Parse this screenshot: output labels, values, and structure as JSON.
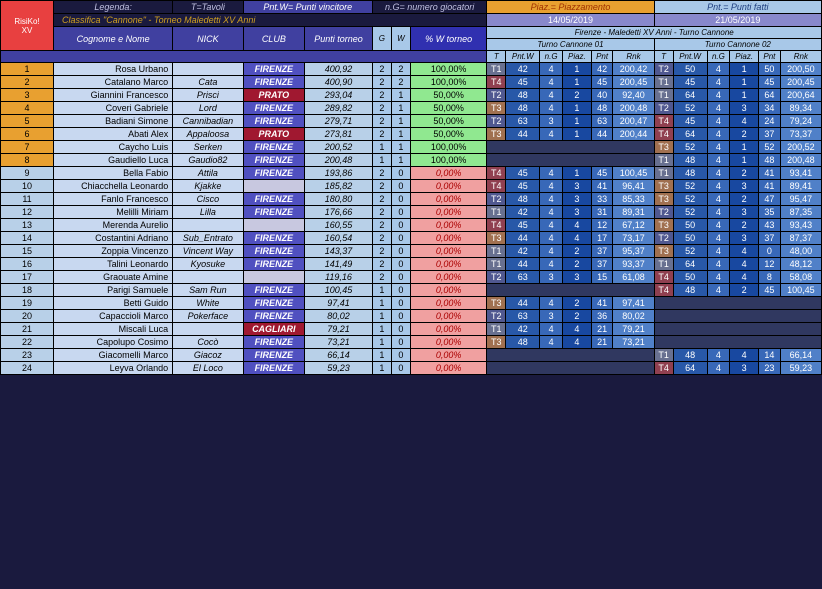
{
  "legend": {
    "l": "Legenda:",
    "t": "T=Tavoli",
    "pw": "Pnt.W= Punti vincitore",
    "ng": "n.G= numero giocatori",
    "pz": "Piaz.= Piazzamento",
    "pf": "Pnt.= Punti fatti"
  },
  "title": "Classifica \"Cannone\" - Torneo Maledetti XV Anni",
  "dates": [
    "14/05/2019",
    "21/05/2019"
  ],
  "event": "Firenze - Maledetti XV Anni - Turno Cannone",
  "turni": [
    "Turno Cannone 01",
    "Turno Cannone 02"
  ],
  "cols": {
    "cn": "Cognome e Nome",
    "nk": "NICK",
    "cl": "CLUB",
    "pt": "Punti torneo",
    "g": "G",
    "w": "W",
    "pw": "% W torneo"
  },
  "tcols": [
    "T",
    "Pnt.W",
    "n.G",
    "Piaz.",
    "Pnt",
    "Rnk"
  ],
  "rows": [
    {
      "r": 1,
      "n": "Rosa Urbano",
      "nk": "",
      "cl": "FIRENZE",
      "pt": "400,92",
      "g": 2,
      "w": 2,
      "pw": "100,00%",
      "pc": "g",
      "t1": [
        "T1",
        "42",
        "4",
        "1",
        "42",
        "200,42"
      ],
      "t2": [
        "T2",
        "50",
        "4",
        "1",
        "50",
        "200,50"
      ]
    },
    {
      "r": 2,
      "n": "Catalano Marco",
      "nk": "Cata",
      "cl": "FIRENZE",
      "pt": "400,90",
      "g": 2,
      "w": 2,
      "pw": "100,00%",
      "pc": "g",
      "t1": [
        "T4",
        "45",
        "4",
        "1",
        "45",
        "200,45"
      ],
      "t2": [
        "T1",
        "45",
        "4",
        "1",
        "45",
        "200,45"
      ]
    },
    {
      "r": 3,
      "n": "Giannini Francesco",
      "nk": "Prisci",
      "cl": "PRATO",
      "clr": 1,
      "pt": "293,04",
      "g": 2,
      "w": 1,
      "pw": "50,00%",
      "pc": "g",
      "t1": [
        "T2",
        "48",
        "4",
        "2",
        "40",
        "92,40"
      ],
      "t2": [
        "T1",
        "64",
        "4",
        "1",
        "64",
        "200,64"
      ]
    },
    {
      "r": 4,
      "n": "Coveri Gabriele",
      "nk": "Lord",
      "cl": "FIRENZE",
      "pt": "289,82",
      "g": 2,
      "w": 1,
      "pw": "50,00%",
      "pc": "g",
      "t1": [
        "T3",
        "48",
        "4",
        "1",
        "48",
        "200,48"
      ],
      "t2": [
        "T2",
        "52",
        "4",
        "3",
        "34",
        "89,34"
      ]
    },
    {
      "r": 5,
      "n": "Badiani Simone",
      "nk": "Cannibadian",
      "cl": "FIRENZE",
      "pt": "279,71",
      "g": 2,
      "w": 1,
      "pw": "50,00%",
      "pc": "g",
      "t1": [
        "T2",
        "63",
        "3",
        "1",
        "63",
        "200,47"
      ],
      "t2": [
        "T4",
        "45",
        "4",
        "4",
        "24",
        "79,24"
      ]
    },
    {
      "r": 6,
      "n": "Abati Alex",
      "nk": "Appaloosa",
      "cl": "PRATO",
      "clr": 1,
      "pt": "273,81",
      "g": 2,
      "w": 1,
      "pw": "50,00%",
      "pc": "g",
      "t1": [
        "T3",
        "44",
        "4",
        "1",
        "44",
        "200,44"
      ],
      "t2": [
        "T4",
        "64",
        "4",
        "2",
        "37",
        "73,37"
      ]
    },
    {
      "r": 7,
      "n": "Caycho Luis",
      "nk": "Serken",
      "cl": "FIRENZE",
      "pt": "200,52",
      "g": 1,
      "w": 1,
      "pw": "100,00%",
      "pc": "g",
      "t1": null,
      "t2": [
        "T3",
        "52",
        "4",
        "1",
        "52",
        "200,52"
      ]
    },
    {
      "r": 8,
      "n": "Gaudiello Luca",
      "nk": "Gaudio82",
      "cl": "FIRENZE",
      "pt": "200,48",
      "g": 1,
      "w": 1,
      "pw": "100,00%",
      "pc": "g",
      "t1": null,
      "t2": [
        "T1",
        "48",
        "4",
        "1",
        "48",
        "200,48"
      ]
    },
    {
      "r": 9,
      "n": "Bella Fabio",
      "nk": "Attila",
      "cl": "FIRENZE",
      "pt": "193,86",
      "g": 2,
      "w": 0,
      "pw": "0,00%",
      "pc": "r",
      "t1": [
        "T4",
        "45",
        "4",
        "1",
        "45",
        "100,45"
      ],
      "t2": [
        "T1",
        "48",
        "4",
        "2",
        "41",
        "93,41"
      ]
    },
    {
      "r": 10,
      "n": "Chiacchella Leonardo",
      "nk": "Kjakke",
      "cl": "",
      "pt": "185,82",
      "g": 2,
      "w": 0,
      "pw": "0,00%",
      "pc": "r",
      "t1": [
        "T4",
        "45",
        "4",
        "3",
        "41",
        "96,41"
      ],
      "t2": [
        "T3",
        "52",
        "4",
        "3",
        "41",
        "89,41"
      ]
    },
    {
      "r": 11,
      "n": "Fanlo Francesco",
      "nk": "Cisco",
      "cl": "FIRENZE",
      "pt": "180,80",
      "g": 2,
      "w": 0,
      "pw": "0,00%",
      "pc": "r",
      "t1": [
        "T2",
        "48",
        "4",
        "3",
        "33",
        "85,33"
      ],
      "t2": [
        "T3",
        "52",
        "4",
        "2",
        "47",
        "95,47"
      ]
    },
    {
      "r": 12,
      "n": "Melilli Miriam",
      "nk": "Lilla",
      "cl": "FIRENZE",
      "pt": "176,66",
      "g": 2,
      "w": 0,
      "pw": "0,00%",
      "pc": "r",
      "t1": [
        "T1",
        "42",
        "4",
        "3",
        "31",
        "89,31"
      ],
      "t2": [
        "T2",
        "52",
        "4",
        "3",
        "35",
        "87,35"
      ]
    },
    {
      "r": 13,
      "n": "Merenda Aurelio",
      "nk": "",
      "cl": "",
      "pt": "160,55",
      "g": 2,
      "w": 0,
      "pw": "0,00%",
      "pc": "r",
      "t1": [
        "T4",
        "45",
        "4",
        "4",
        "12",
        "67,12"
      ],
      "t2": [
        "T3",
        "50",
        "4",
        "2",
        "43",
        "93,43"
      ]
    },
    {
      "r": 14,
      "n": "Costantini Adriano",
      "nk": "Sub_Entrato",
      "cl": "FIRENZE",
      "pt": "160,54",
      "g": 2,
      "w": 0,
      "pw": "0,00%",
      "pc": "r",
      "t1": [
        "T3",
        "44",
        "4",
        "4",
        "17",
        "73,17"
      ],
      "t2": [
        "T2",
        "50",
        "4",
        "3",
        "37",
        "87,37"
      ]
    },
    {
      "r": 15,
      "n": "Zoppia Vincenzo",
      "nk": "Vincent Way",
      "cl": "FIRENZE",
      "pt": "143,37",
      "g": 2,
      "w": 0,
      "pw": "0,00%",
      "pc": "r",
      "t1": [
        "T1",
        "42",
        "4",
        "2",
        "37",
        "95,37"
      ],
      "t2": [
        "T3",
        "52",
        "4",
        "4",
        "0",
        "48,00"
      ]
    },
    {
      "r": 16,
      "n": "Talini Leonardo",
      "nk": "Kyosuke",
      "cl": "FIRENZE",
      "pt": "141,49",
      "g": 2,
      "w": 0,
      "pw": "0,00%",
      "pc": "r",
      "t1": [
        "T1",
        "44",
        "4",
        "2",
        "37",
        "93,37"
      ],
      "t2": [
        "T1",
        "64",
        "4",
        "4",
        "12",
        "48,12"
      ]
    },
    {
      "r": 17,
      "n": "Graouate Amine",
      "nk": "",
      "cl": "",
      "pt": "119,16",
      "g": 2,
      "w": 0,
      "pw": "0,00%",
      "pc": "r",
      "t1": [
        "T2",
        "63",
        "3",
        "3",
        "15",
        "61,08"
      ],
      "t2": [
        "T4",
        "50",
        "4",
        "4",
        "8",
        "58,08"
      ]
    },
    {
      "r": 18,
      "n": "Parigi Samuele",
      "nk": "Sam Run",
      "cl": "FIRENZE",
      "pt": "100,45",
      "g": 1,
      "w": 0,
      "pw": "0,00%",
      "pc": "r",
      "t1": null,
      "t2": [
        "T4",
        "48",
        "4",
        "2",
        "45",
        "100,45"
      ]
    },
    {
      "r": 19,
      "n": "Betti Guido",
      "nk": "White",
      "cl": "FIRENZE",
      "pt": "97,41",
      "g": 1,
      "w": 0,
      "pw": "0,00%",
      "pc": "r",
      "t1": [
        "T3",
        "44",
        "4",
        "2",
        "41",
        "97,41"
      ],
      "t2": null
    },
    {
      "r": 20,
      "n": "Capaccioli Marco",
      "nk": "Pokerface",
      "cl": "FIRENZE",
      "pt": "80,02",
      "g": 1,
      "w": 0,
      "pw": "0,00%",
      "pc": "r",
      "t1": [
        "T2",
        "63",
        "3",
        "2",
        "36",
        "80,02"
      ],
      "t2": null
    },
    {
      "r": 21,
      "n": "Miscali Luca",
      "nk": "",
      "cl": "CAGLIARI",
      "clr": 1,
      "pt": "79,21",
      "g": 1,
      "w": 0,
      "pw": "0,00%",
      "pc": "r",
      "t1": [
        "T1",
        "42",
        "4",
        "4",
        "21",
        "79,21"
      ],
      "t2": null
    },
    {
      "r": 22,
      "n": "Capolupo Cosimo",
      "nk": "Cocò",
      "cl": "FIRENZE",
      "pt": "73,21",
      "g": 1,
      "w": 0,
      "pw": "0,00%",
      "pc": "r",
      "t1": [
        "T3",
        "48",
        "4",
        "4",
        "21",
        "73,21"
      ],
      "t2": null
    },
    {
      "r": 23,
      "n": "Giacomelli Marco",
      "nk": "Giacoz",
      "cl": "FIRENZE",
      "pt": "66,14",
      "g": 1,
      "w": 0,
      "pw": "0,00%",
      "pc": "r",
      "t1": null,
      "t2": [
        "T1",
        "48",
        "4",
        "4",
        "14",
        "66,14"
      ]
    },
    {
      "r": 24,
      "n": "Leyva Orlando",
      "nk": "El Loco",
      "cl": "FIRENZE",
      "pt": "59,23",
      "g": 1,
      "w": 0,
      "pw": "0,00%",
      "pc": "r",
      "t1": null,
      "t2": [
        "T4",
        "64",
        "4",
        "3",
        "23",
        "59,23"
      ]
    }
  ]
}
